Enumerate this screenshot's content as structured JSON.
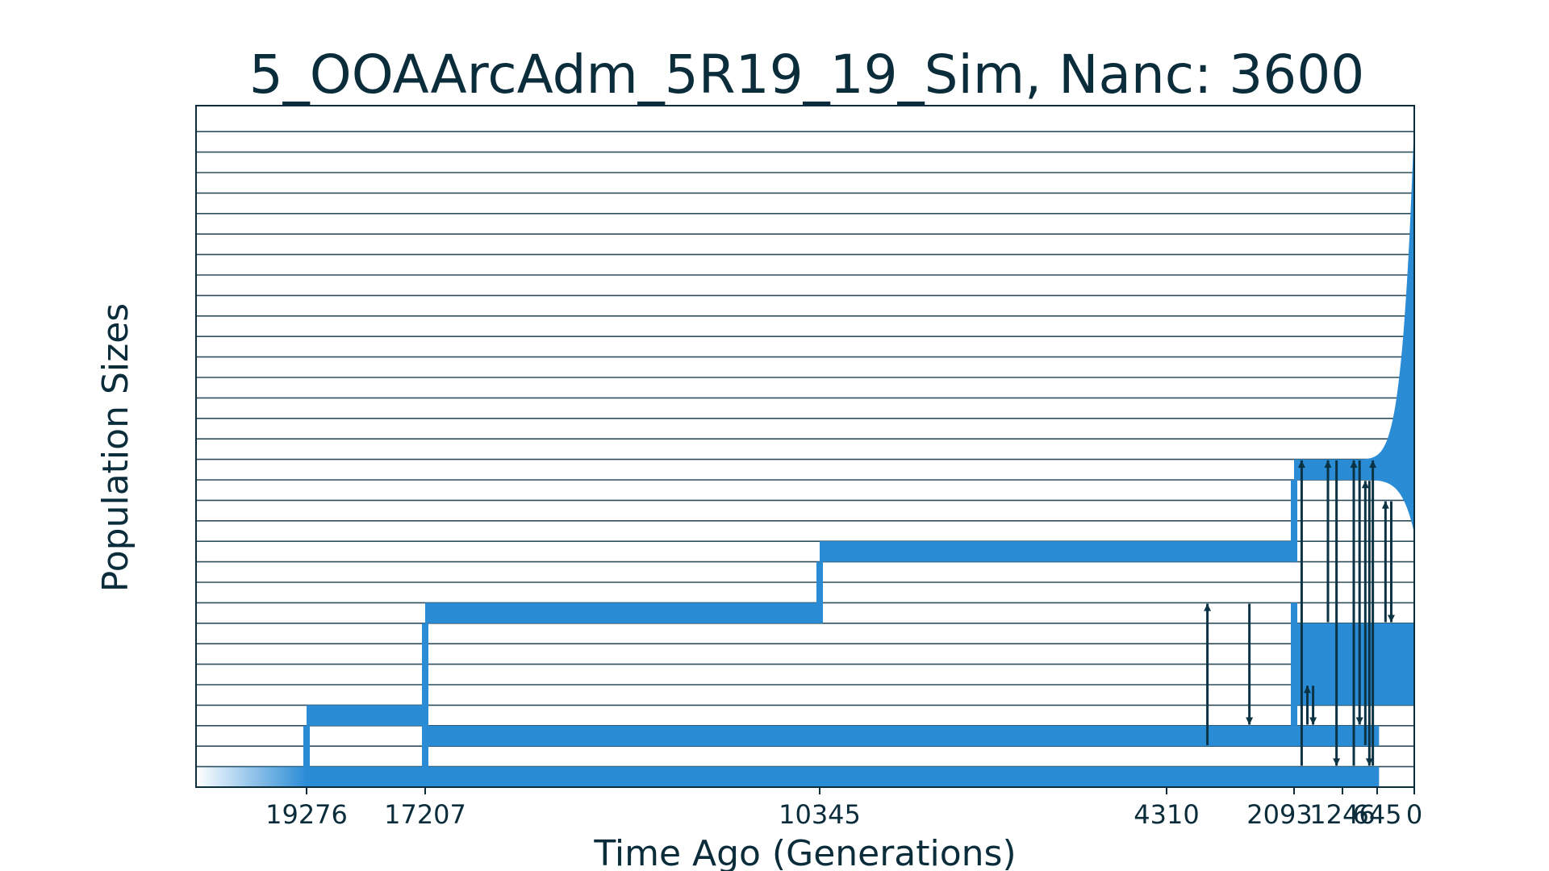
{
  "chart_data": {
    "type": "demographic_model",
    "title": "5_OOAArcAdm_5R19_19_Sim, Nanc: 3600",
    "xlabel": "Time Ago (Generations)",
    "ylabel": "Population Sizes",
    "x_ticks": [
      19276,
      17207,
      10345,
      4310,
      2093,
      1246,
      645,
      0
    ],
    "x_tick_labels": [
      "19276",
      "17207",
      "10345",
      "4310",
      "2093",
      "1246",
      "645",
      "0"
    ],
    "xlim": [
      21200,
      0
    ],
    "grid": "horizontal",
    "colors": {
      "population": "#2b8cd6",
      "migration": "#0b3344",
      "grid": "#2f4f5c",
      "text": "#0b2d3b"
    },
    "populations": [
      {
        "segments": [
          {
            "start": 21200,
            "end": 19276,
            "band": 0,
            "fade": true
          },
          {
            "start": 19276,
            "end": 612,
            "band": 0
          }
        ]
      },
      {
        "segments": [
          {
            "start": 19276,
            "end": 17207,
            "band": 3
          },
          {
            "start": 17207,
            "end": 612,
            "band": 2
          }
        ]
      },
      {
        "segments": [
          {
            "start": 17207,
            "end": 10345,
            "band": 8
          },
          {
            "start": 10345,
            "end": 2093,
            "band": 11
          }
        ]
      },
      {
        "segments": [
          {
            "start": 2093,
            "end": 0,
            "band": 4,
            "height": 4
          }
        ]
      },
      {
        "segments": [
          {
            "start": 2093,
            "end": 1246,
            "band": 15
          },
          {
            "start": 1246,
            "end": 0,
            "band": 15,
            "growth": "exponential"
          }
        ]
      }
    ],
    "migrations": [
      {
        "time": 3600,
        "from": 2,
        "to": 8,
        "direction": "up"
      },
      {
        "time": 2870,
        "from": 8,
        "to": 3,
        "direction": "down"
      },
      {
        "time": 1960,
        "from": 1,
        "to": 15,
        "direction": "up"
      },
      {
        "time": 1860,
        "from": 3,
        "to": 4,
        "direction": "up"
      },
      {
        "time": 1760,
        "from": 4,
        "to": 3,
        "direction": "down"
      },
      {
        "time": 1500,
        "from": 8,
        "to": 15,
        "direction": "up"
      },
      {
        "time": 1350,
        "from": 15,
        "to": 1,
        "direction": "down"
      },
      {
        "time": 1050,
        "from": 1,
        "to": 15,
        "direction": "up"
      },
      {
        "time": 950,
        "from": 15,
        "to": 3,
        "direction": "down"
      },
      {
        "time": 850,
        "from": 2,
        "to": 14,
        "direction": "up"
      },
      {
        "time": 780,
        "from": 14,
        "to": 1,
        "direction": "down"
      },
      {
        "time": 720,
        "from": 1,
        "to": 15,
        "direction": "up"
      },
      {
        "time": 500,
        "from": 8,
        "to": 13,
        "direction": "up"
      },
      {
        "time": 400,
        "from": 13,
        "to": 8,
        "direction": "down"
      }
    ]
  }
}
